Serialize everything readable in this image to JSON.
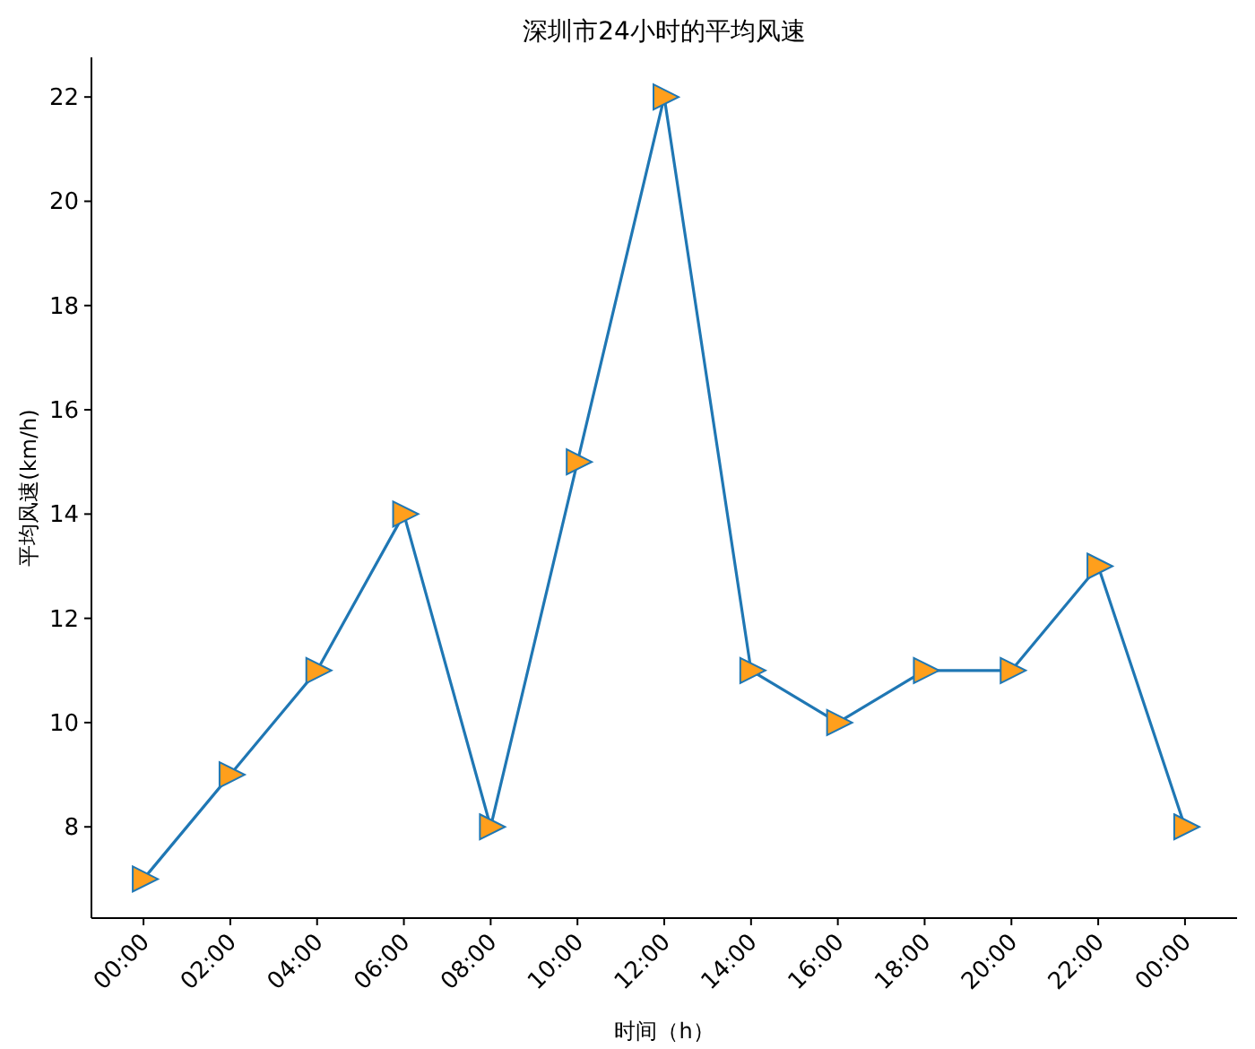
{
  "chart_data": {
    "type": "line",
    "title": "深圳市24小时的平均风速",
    "xlabel": "时间（h）",
    "ylabel": "平均风速(km/h)",
    "categories": [
      "00:00",
      "02:00",
      "04:00",
      "06:00",
      "08:00",
      "10:00",
      "12:00",
      "14:00",
      "16:00",
      "18:00",
      "20:00",
      "22:00",
      "00:00"
    ],
    "series": [
      {
        "color": "#1f77b4",
        "colors": [
          "#ff9f1c",
          "#ff9f1c",
          "#ff9f1c",
          "#ff9f1c",
          "#ff9f1c",
          "#ff9f1c",
          "#ff9f1c",
          "#ff9f1c",
          "#ff9f1c",
          "#ff9f1c",
          "#ff9f1c",
          "#ff9f1c",
          "#ff9f1c"
        ],
        "values": [
          7,
          9,
          11,
          14,
          8,
          15,
          22,
          11,
          10,
          11,
          11,
          13,
          8
        ]
      }
    ],
    "ylim": [
      6.25,
      22.76
    ],
    "yticks": [
      8,
      10,
      12,
      14,
      16,
      18,
      20,
      22
    ],
    "grid": false,
    "marker": "triangle",
    "line_style": "solid"
  }
}
